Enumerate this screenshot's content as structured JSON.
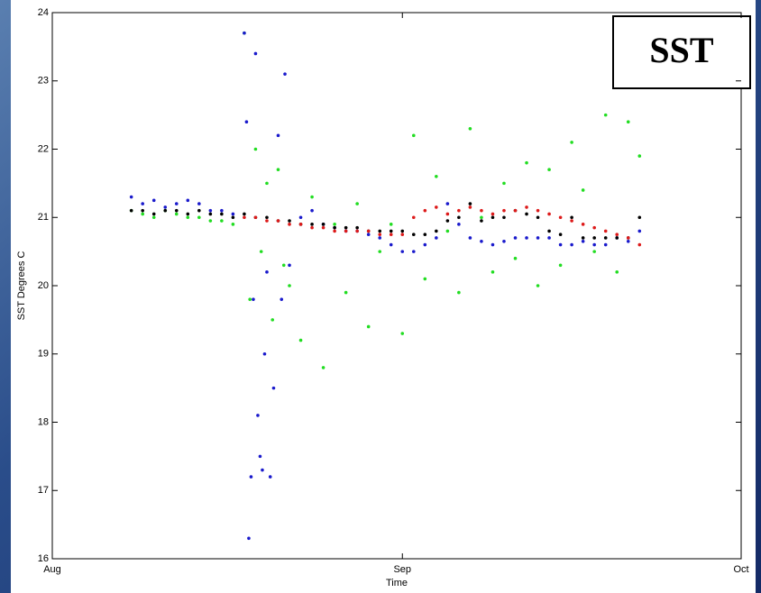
{
  "chart_data": {
    "type": "scatter",
    "annotation": "SST",
    "ylabel": "SST Degrees C",
    "xlabel": "Time",
    "xlim": [
      0,
      61
    ],
    "ylim": [
      16,
      24
    ],
    "xticks": [
      {
        "value": 0,
        "label": "Aug"
      },
      {
        "value": 31,
        "label": "Sep"
      },
      {
        "value": 61,
        "label": "Oct"
      }
    ],
    "yticks": [
      16,
      17,
      18,
      19,
      20,
      21,
      22,
      23,
      24
    ],
    "series": [
      {
        "color": "#22dd22",
        "x": [
          7,
          8,
          9,
          10,
          11,
          12,
          13,
          14,
          15,
          16,
          17,
          17.5,
          18,
          18.5,
          19,
          19.5,
          20,
          20.5,
          21,
          22,
          23,
          24,
          25,
          26,
          27,
          28,
          29,
          30,
          31,
          32,
          33,
          34,
          35,
          36,
          37,
          38,
          39,
          40,
          41,
          42,
          43,
          44,
          45,
          46,
          47,
          48,
          49,
          50,
          51,
          52
        ],
        "values": [
          21.1,
          21.05,
          21.0,
          21.1,
          21.05,
          21.0,
          21.0,
          20.95,
          20.95,
          20.9,
          23.7,
          19.8,
          22.0,
          20.5,
          21.5,
          19.5,
          21.7,
          20.3,
          20.0,
          19.2,
          21.3,
          18.8,
          20.9,
          19.9,
          21.2,
          19.4,
          20.5,
          20.9,
          19.3,
          22.2,
          20.1,
          21.6,
          20.8,
          19.9,
          22.3,
          21.0,
          20.2,
          21.5,
          20.4,
          21.8,
          20.0,
          21.7,
          20.3,
          22.1,
          21.4,
          20.5,
          22.5,
          20.2,
          22.4,
          21.9
        ]
      },
      {
        "color": "#1a1acc",
        "x": [
          7,
          8,
          9,
          10,
          11,
          12,
          13,
          14,
          15,
          16,
          17,
          17.2,
          17.4,
          17.6,
          17.8,
          18,
          18.2,
          18.4,
          18.6,
          18.8,
          19,
          19.3,
          19.6,
          20,
          20.3,
          20.6,
          21,
          22,
          23,
          24,
          25,
          26,
          27,
          28,
          29,
          30,
          31,
          32,
          33,
          34,
          35,
          36,
          37,
          38,
          39,
          40,
          41,
          42,
          43,
          44,
          45,
          46,
          47,
          48,
          49,
          50,
          51,
          52
        ],
        "values": [
          21.3,
          21.2,
          21.25,
          21.15,
          21.2,
          21.25,
          21.2,
          21.1,
          21.1,
          21.05,
          23.7,
          22.4,
          16.3,
          17.2,
          19.8,
          23.4,
          18.1,
          17.5,
          17.3,
          19.0,
          20.2,
          17.2,
          18.5,
          22.2,
          19.8,
          23.1,
          20.3,
          21.0,
          21.1,
          20.9,
          20.85,
          20.8,
          20.8,
          20.75,
          20.7,
          20.6,
          20.5,
          20.5,
          20.6,
          20.7,
          21.2,
          20.9,
          20.7,
          20.65,
          20.6,
          20.65,
          20.7,
          20.7,
          20.7,
          20.7,
          20.6,
          20.6,
          20.65,
          20.6,
          20.6,
          20.7,
          20.65,
          20.8
        ]
      },
      {
        "color": "#000000",
        "x": [
          7,
          8,
          9,
          10,
          11,
          12,
          13,
          14,
          15,
          16,
          17,
          18,
          19,
          20,
          21,
          22,
          23,
          24,
          25,
          26,
          27,
          28,
          29,
          30,
          31,
          32,
          33,
          34,
          35,
          36,
          37,
          38,
          39,
          40,
          41,
          42,
          43,
          44,
          45,
          46,
          47,
          48,
          49,
          50,
          51,
          52
        ],
        "values": [
          21.1,
          21.1,
          21.05,
          21.1,
          21.1,
          21.05,
          21.1,
          21.05,
          21.05,
          21.0,
          21.05,
          21.0,
          21.0,
          20.95,
          20.95,
          20.9,
          20.9,
          20.9,
          20.85,
          20.85,
          20.85,
          20.8,
          20.8,
          20.8,
          20.8,
          20.75,
          20.75,
          20.8,
          20.95,
          21.0,
          21.2,
          20.95,
          21.0,
          21.0,
          21.1,
          21.05,
          21.0,
          20.8,
          20.75,
          21.0,
          20.7,
          20.7,
          20.7,
          20.7,
          20.7,
          21.0
        ]
      },
      {
        "color": "#dd1a1a",
        "x": [
          17,
          18,
          19,
          20,
          21,
          22,
          23,
          24,
          25,
          26,
          27,
          28,
          29,
          30,
          31,
          32,
          33,
          34,
          35,
          36,
          37,
          38,
          39,
          40,
          41,
          42,
          43,
          44,
          45,
          46,
          47,
          48,
          49,
          50,
          51,
          52
        ],
        "values": [
          21.0,
          21.0,
          20.95,
          20.95,
          20.9,
          20.9,
          20.85,
          20.85,
          20.8,
          20.8,
          20.8,
          20.8,
          20.75,
          20.75,
          20.75,
          21.0,
          21.1,
          21.15,
          21.05,
          21.1,
          21.15,
          21.1,
          21.05,
          21.1,
          21.1,
          21.15,
          21.1,
          21.05,
          21.0,
          20.95,
          20.9,
          20.85,
          20.8,
          20.75,
          20.7,
          20.6
        ]
      }
    ]
  }
}
